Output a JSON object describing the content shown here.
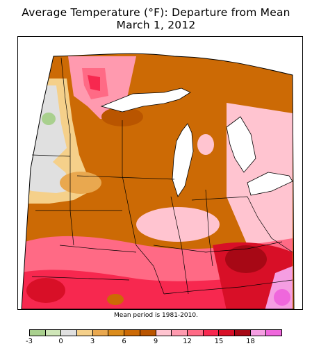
{
  "title": {
    "line1": "Average Temperature (°F): Departure from Mean",
    "line2": "March 1, 2012"
  },
  "map": {
    "region": "Upper Midwest and Great Lakes",
    "variable": "Average Temperature (°F): Departure from Mean",
    "date": "March 1, 2012"
  },
  "note": "Mean period is 1981-2010.",
  "legend": {
    "colors": [
      "#a9d08e",
      "#cfe6b8",
      "#e0e0e0",
      "#f5d08a",
      "#e9a84f",
      "#db8c1c",
      "#cc6a05",
      "#b95500",
      "#ffc4d0",
      "#ff9aaf",
      "#ff6a85",
      "#f7284f",
      "#d80f27",
      "#a70815",
      "#f59ee2",
      "#ef67dc"
    ],
    "labels": [
      "-3",
      "0",
      "3",
      "6",
      "9",
      "12",
      "15",
      "18"
    ]
  }
}
